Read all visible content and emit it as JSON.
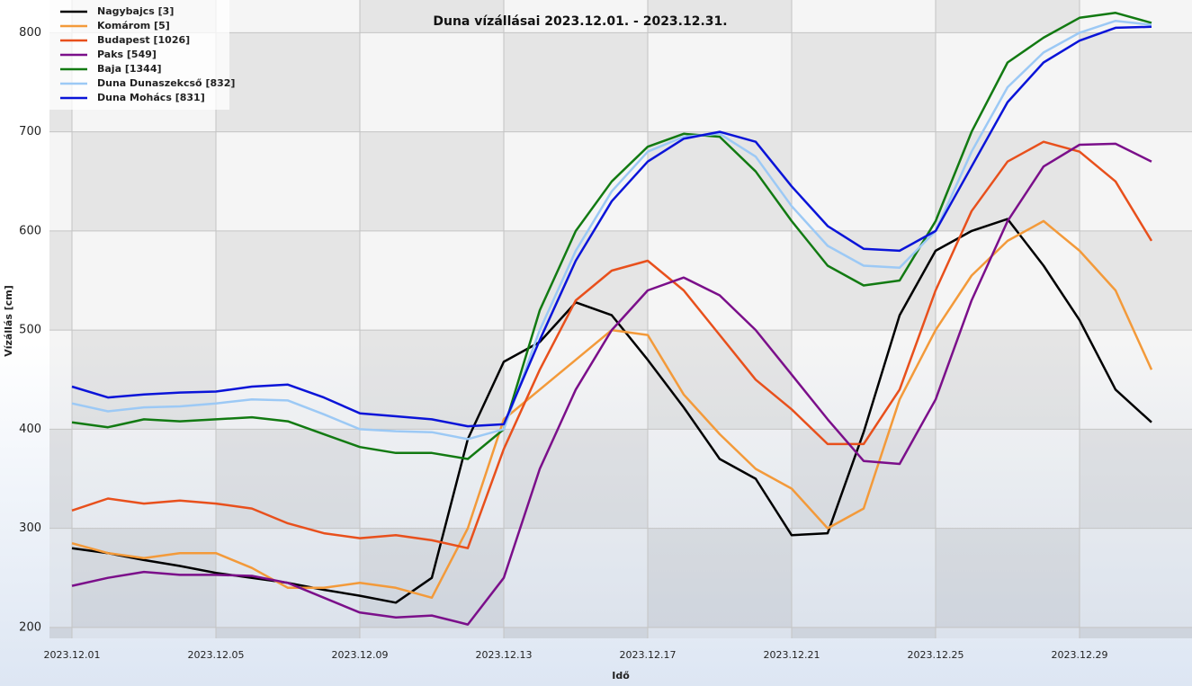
{
  "chart_data": {
    "type": "line",
    "title": "Duna vízállásai 2023.12.01. - 2023.12.31.",
    "x_label": "Idő",
    "y_label": "Vízállás [cm]",
    "x": [
      "2023.12.01",
      "2023.12.02",
      "2023.12.03",
      "2023.12.04",
      "2023.12.05",
      "2023.12.06",
      "2023.12.07",
      "2023.12.08",
      "2023.12.09",
      "2023.12.10",
      "2023.12.11",
      "2023.12.12",
      "2023.12.13",
      "2023.12.14",
      "2023.12.15",
      "2023.12.16",
      "2023.12.17",
      "2023.12.18",
      "2023.12.19",
      "2023.12.20",
      "2023.12.21",
      "2023.12.22",
      "2023.12.23",
      "2023.12.24",
      "2023.12.25",
      "2023.12.26",
      "2023.12.27",
      "2023.12.28",
      "2023.12.29",
      "2023.12.30",
      "2023.12.31"
    ],
    "xticks": [
      "2023.12.01",
      "2023.12.05",
      "2023.12.09",
      "2023.12.13",
      "2023.12.17",
      "2023.12.21",
      "2023.12.25",
      "2023.12.29"
    ],
    "ylim": [
      189,
      833
    ],
    "yticks": [
      200,
      300,
      400,
      500,
      600,
      700,
      800
    ],
    "grid": true,
    "legend": "top-left",
    "series": [
      {
        "name": "Nagybajcs [3]",
        "color": "#000000",
        "values": [
          280,
          275,
          268,
          262,
          255,
          250,
          245,
          238,
          232,
          225,
          250,
          390,
          468,
          488,
          528,
          515,
          470,
          422,
          370,
          350,
          293,
          295,
          397,
          515,
          580,
          600,
          612,
          565,
          510,
          440,
          407
        ]
      },
      {
        "name": "Komárom [5]",
        "color": "#f39a3a",
        "values": [
          285,
          275,
          270,
          275,
          275,
          260,
          240,
          240,
          245,
          240,
          230,
          300,
          410,
          440,
          470,
          500,
          495,
          435,
          395,
          360,
          340,
          300,
          320,
          430,
          500,
          555,
          590,
          610,
          580,
          540,
          460
        ]
      },
      {
        "name": "Budapest [1026]",
        "color": "#e8501c",
        "values": [
          318,
          330,
          325,
          328,
          325,
          320,
          305,
          295,
          290,
          293,
          288,
          280,
          380,
          460,
          530,
          560,
          570,
          540,
          495,
          450,
          420,
          385,
          385,
          440,
          540,
          620,
          670,
          690,
          680,
          650,
          590
        ]
      },
      {
        "name": "Paks [549]",
        "color": "#7b0f8a",
        "values": [
          242,
          250,
          256,
          253,
          253,
          252,
          245,
          230,
          215,
          210,
          212,
          203,
          250,
          360,
          440,
          500,
          540,
          553,
          535,
          500,
          455,
          410,
          368,
          365,
          430,
          530,
          610,
          665,
          687,
          688,
          670
        ]
      },
      {
        "name": "Baja [1344]",
        "color": "#127a12",
        "values": [
          407,
          402,
          410,
          408,
          410,
          412,
          408,
          395,
          382,
          376,
          376,
          370,
          400,
          520,
          600,
          650,
          685,
          698,
          695,
          660,
          610,
          565,
          545,
          550,
          610,
          700,
          770,
          795,
          815,
          820,
          810
        ]
      },
      {
        "name": "Duna Dunaszekcső [832]",
        "color": "#9cc9f5",
        "values": [
          426,
          418,
          422,
          423,
          426,
          430,
          429,
          415,
          400,
          398,
          397,
          390,
          400,
          500,
          580,
          640,
          680,
          695,
          698,
          675,
          625,
          585,
          565,
          563,
          600,
          680,
          745,
          780,
          800,
          812,
          808
        ]
      },
      {
        "name": "Duna Mohács [831]",
        "color": "#0a14d8",
        "values": [
          443,
          432,
          435,
          437,
          438,
          443,
          445,
          432,
          416,
          413,
          410,
          403,
          405,
          490,
          570,
          630,
          670,
          693,
          700,
          690,
          645,
          605,
          582,
          580,
          600,
          665,
          730,
          770,
          792,
          805,
          806
        ]
      }
    ]
  }
}
